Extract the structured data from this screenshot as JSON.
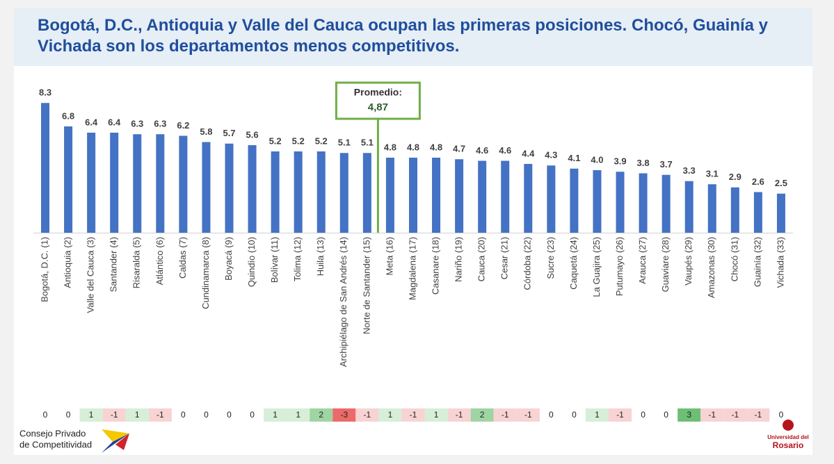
{
  "chart_data": {
    "type": "bar",
    "title": "Bogotá, D.C., Antioquia y Valle del Cauca ocupan las primeras posiciones. Chocó, Guainía y Vichada son los departamentos menos competitivos.",
    "categories": [
      "Bogotá, D.C. (1)",
      "Antioquia (2)",
      "Valle del Cauca (3)",
      "Santander (4)",
      "Risaralda (5)",
      "Atlántico (6)",
      "Caldas (7)",
      "Cundinamarca (8)",
      "Boyacá (9)",
      "Quindío (10)",
      "Bolívar (11)",
      "Tolima (12)",
      "Huila (13)",
      "Archipiélago de San Andrés (14)",
      "Norte de Santander (15)",
      "Meta (16)",
      "Magdalena (17)",
      "Casanare (18)",
      "Nariño (19)",
      "Cauca (20)",
      "Cesar (21)",
      "Córdoba (22)",
      "Sucre (23)",
      "Caquetá (24)",
      "La Guajira (25)",
      "Putumayo (26)",
      "Arauca (27)",
      "Guaviare (28)",
      "Vaupés (29)",
      "Amazonas (30)",
      "Chocó (31)",
      "Guainía (32)",
      "Vichada (33)"
    ],
    "values": [
      8.3,
      6.8,
      6.4,
      6.4,
      6.3,
      6.3,
      6.2,
      5.8,
      5.7,
      5.6,
      5.2,
      5.2,
      5.2,
      5.1,
      5.1,
      4.8,
      4.8,
      4.8,
      4.7,
      4.6,
      4.6,
      4.4,
      4.3,
      4.1,
      4.0,
      3.9,
      3.8,
      3.7,
      3.3,
      3.1,
      2.9,
      2.6,
      2.5
    ],
    "value_labels": [
      "8.3",
      "6.8",
      "6.4",
      "6.4",
      "6.3",
      "6.3",
      "6.2",
      "5.8",
      "5.7",
      "5.6",
      "5.2",
      "5.2",
      "5.2",
      "5.1",
      "5.1",
      "4.8",
      "4.8",
      "4.8",
      "4.7",
      "4.6",
      "4.6",
      "4.4",
      "4.3",
      "4.1",
      "4.0",
      "3.9",
      "3.8",
      "3.7",
      "3.3",
      "3.1",
      "2.9",
      "2.6",
      "2.5"
    ],
    "rank_change": [
      0,
      0,
      1,
      -1,
      1,
      -1,
      0,
      0,
      0,
      0,
      1,
      1,
      2,
      -3,
      -1,
      1,
      -1,
      1,
      -1,
      2,
      -1,
      -1,
      0,
      0,
      1,
      -1,
      0,
      0,
      3,
      -1,
      -1,
      -1,
      0
    ],
    "color": "#4472c4",
    "ylim": [
      0,
      9
    ],
    "average": {
      "label": "Promedio:",
      "value": 4.87,
      "value_label": "4,87"
    },
    "logos": {
      "left": [
        "Consejo Privado",
        "de Competitividad"
      ],
      "right": [
        "Universidad del",
        "Rosario"
      ]
    }
  }
}
